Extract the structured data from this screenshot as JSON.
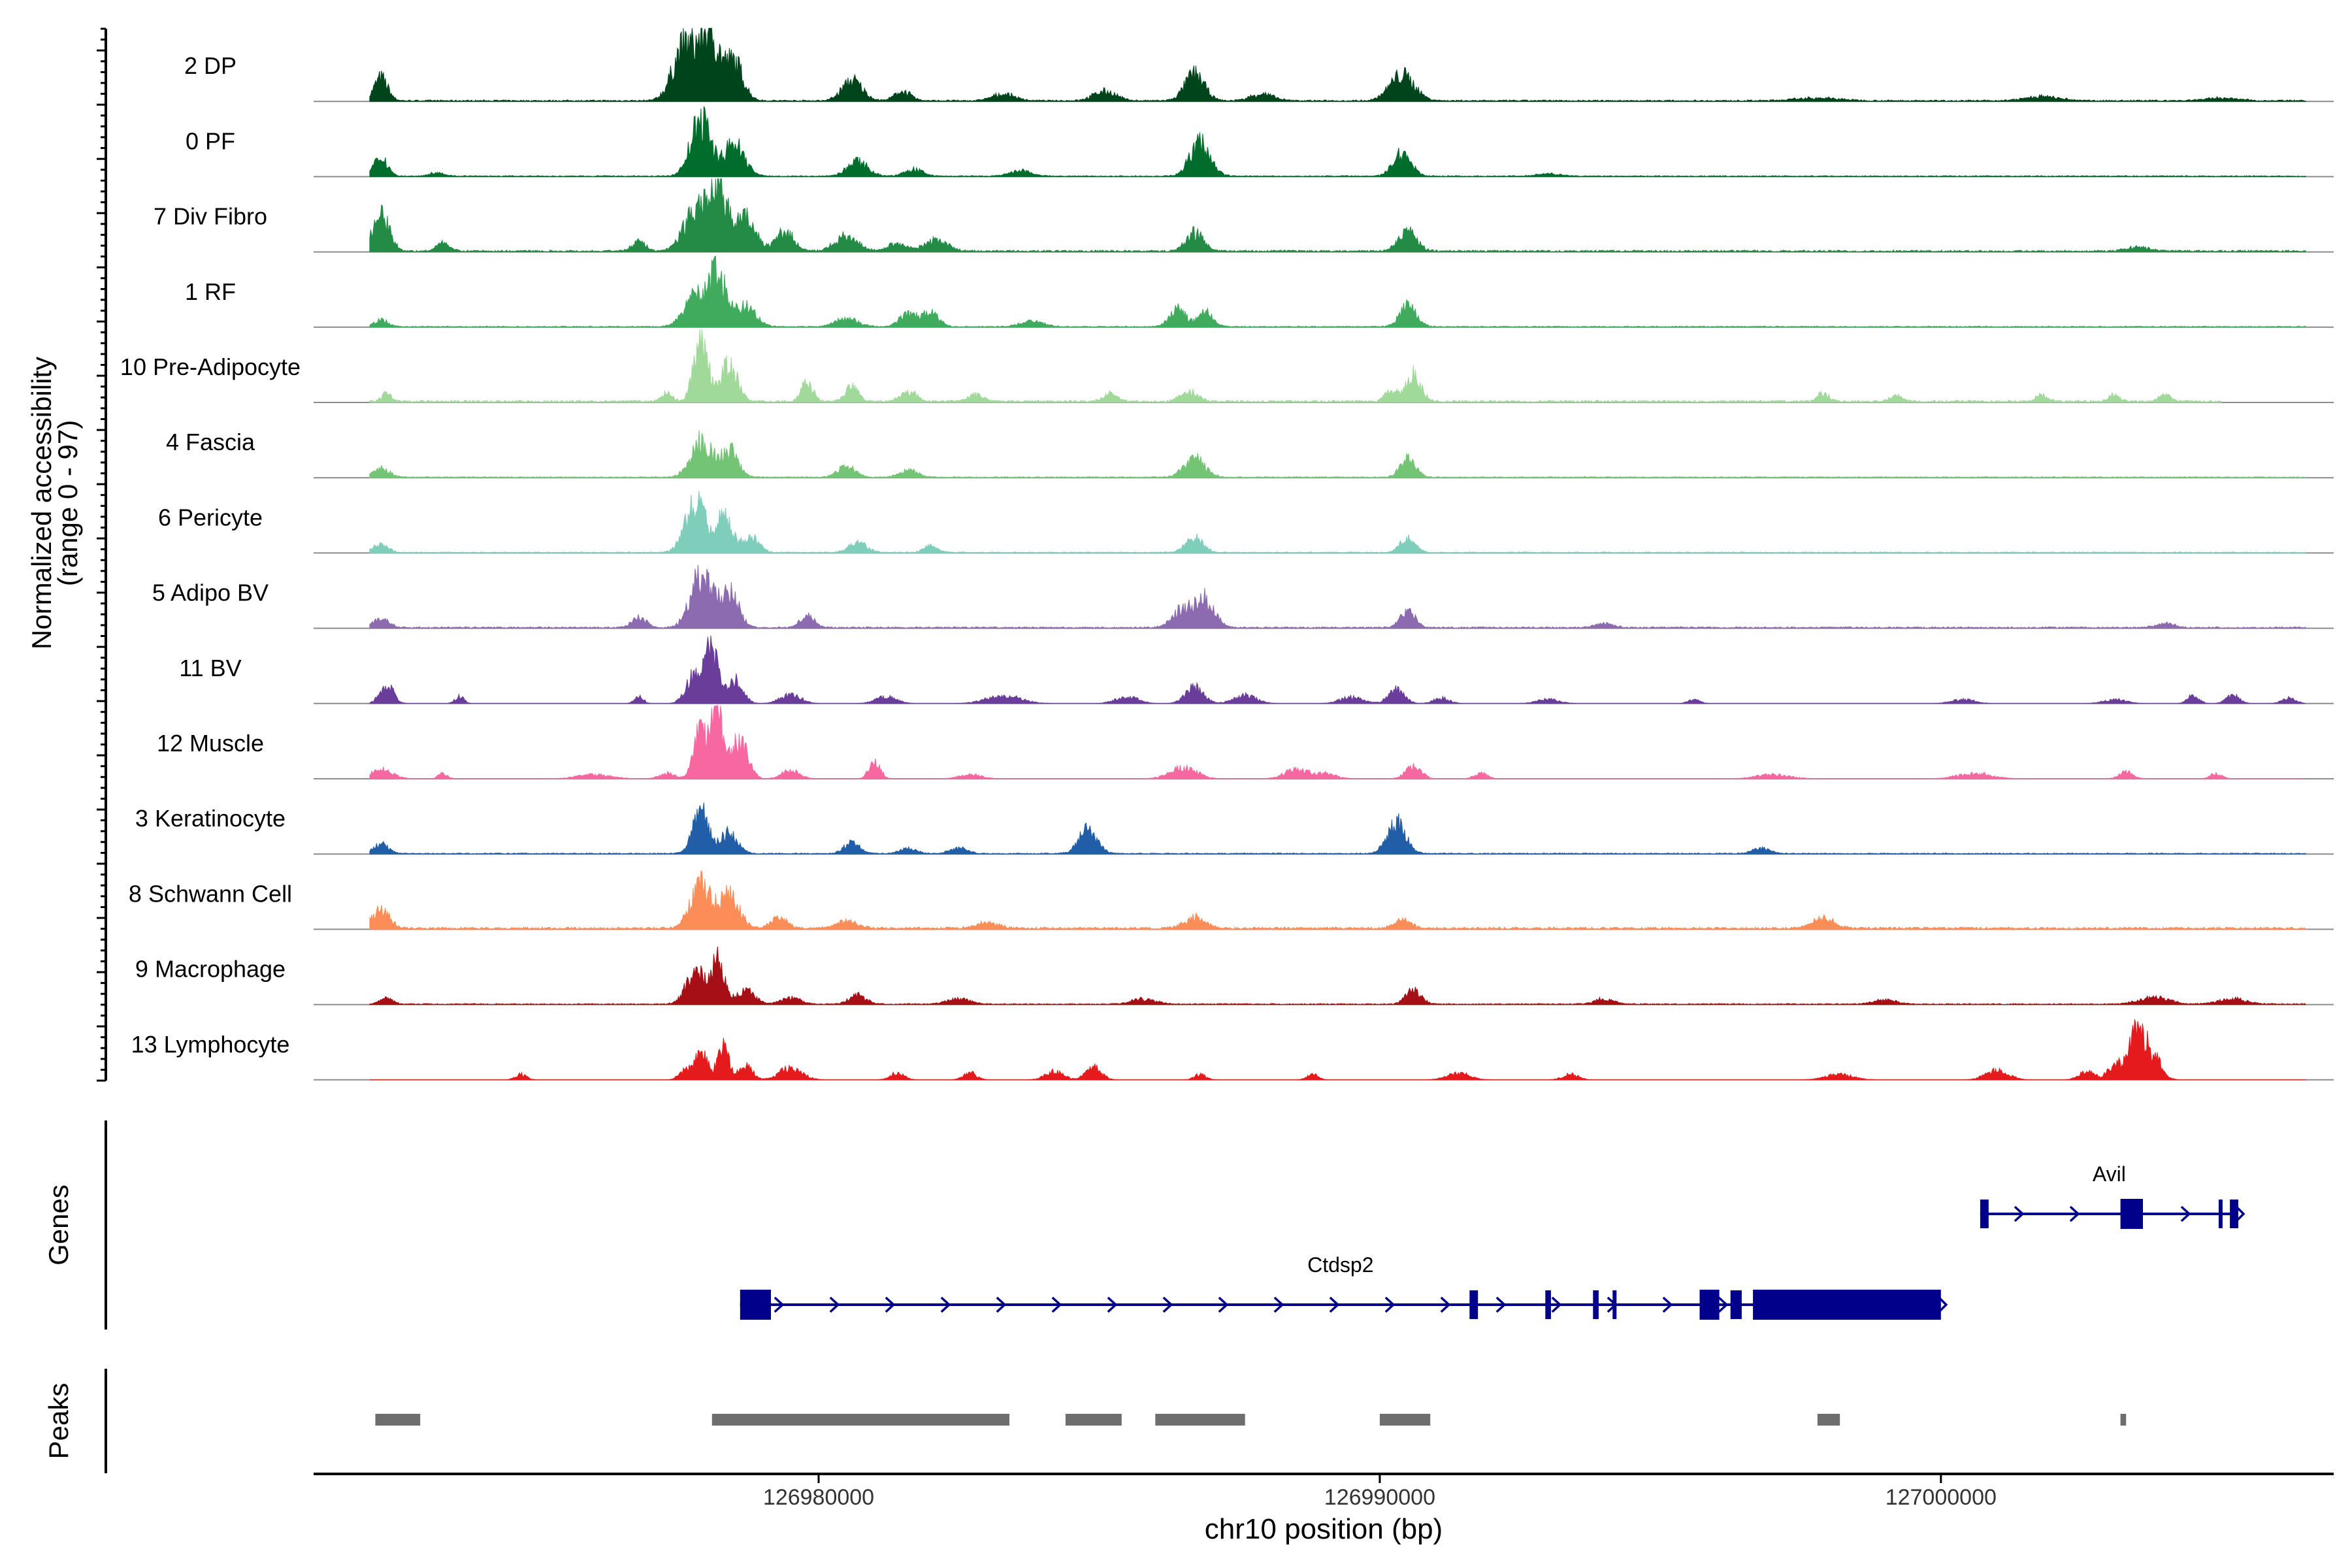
{
  "chart_data": {
    "type": "area",
    "chromosome": "chr10",
    "x_range": [
      126971000,
      127007000
    ],
    "xlabel": "chr10 position (bp)",
    "x_ticks": [
      {
        "value": 126980000,
        "label": "126980000"
      },
      {
        "value": 126990000,
        "label": "126990000"
      },
      {
        "value": 127000000,
        "label": "127000000"
      }
    ],
    "ylabel": "Normalized accessibility",
    "ylabel_range": "(range 0 - 97)",
    "y_range": [
      0,
      97
    ],
    "tracks": [
      {
        "name": "2 DP",
        "color": "#00441b",
        "peaks": [
          [
            126972200,
            34,
            120
          ],
          [
            126977600,
            78,
            200
          ],
          [
            126978050,
            100,
            180
          ],
          [
            126978500,
            54,
            160
          ],
          [
            126980600,
            30,
            180
          ],
          [
            126981500,
            14,
            140
          ],
          [
            126983300,
            10,
            200
          ],
          [
            126985100,
            14,
            200
          ],
          [
            126986700,
            40,
            170
          ],
          [
            126987900,
            10,
            200
          ],
          [
            126990400,
            38,
            220
          ],
          [
            126997800,
            4,
            400
          ],
          [
            127001800,
            6,
            300
          ],
          [
            127005000,
            4,
            300
          ]
        ],
        "base": 2,
        "span": [
          126972000,
          127006500
        ]
      },
      {
        "name": "0 PF",
        "color": "#006d2c",
        "peaks": [
          [
            126972200,
            28,
            120
          ],
          [
            126973200,
            6,
            120
          ],
          [
            126977900,
            82,
            180
          ],
          [
            126978500,
            48,
            180
          ],
          [
            126980700,
            22,
            180
          ],
          [
            126981700,
            10,
            160
          ],
          [
            126983600,
            8,
            180
          ],
          [
            126986800,
            50,
            180
          ],
          [
            126990400,
            34,
            160
          ],
          [
            126993000,
            4,
            200
          ]
        ],
        "base": 1.5,
        "span": [
          126972000,
          127006500
        ]
      },
      {
        "name": "7 Div Fibro",
        "color": "#238b45",
        "peaks": [
          [
            126972200,
            52,
            150
          ],
          [
            126973300,
            12,
            120
          ],
          [
            126976800,
            14,
            120
          ],
          [
            126977800,
            60,
            200
          ],
          [
            126978200,
            100,
            160
          ],
          [
            126978700,
            48,
            180
          ],
          [
            126979400,
            28,
            160
          ],
          [
            126980500,
            22,
            200
          ],
          [
            126981400,
            12,
            160
          ],
          [
            126982100,
            16,
            200
          ],
          [
            126986700,
            28,
            150
          ],
          [
            126990500,
            30,
            160
          ],
          [
            127003500,
            6,
            200
          ]
        ],
        "base": 2.5,
        "span": [
          126972000,
          127006500
        ]
      },
      {
        "name": "1 RF",
        "color": "#41ab5d",
        "peaks": [
          [
            126972200,
            10,
            120
          ],
          [
            126977800,
            46,
            200
          ],
          [
            126978200,
            74,
            150
          ],
          [
            126978700,
            30,
            180
          ],
          [
            126980500,
            12,
            200
          ],
          [
            126981600,
            18,
            160
          ],
          [
            126982000,
            20,
            140
          ],
          [
            126983800,
            8,
            200
          ],
          [
            126986400,
            26,
            140
          ],
          [
            126986900,
            22,
            130
          ],
          [
            126990500,
            30,
            150
          ]
        ],
        "base": 1.5,
        "span": [
          126972000,
          127006500
        ]
      },
      {
        "name": "10 Pre-Adipocyte",
        "color": "#a1d99b",
        "peaks": [
          [
            126972300,
            12,
            80
          ],
          [
            126977300,
            12,
            100
          ],
          [
            126977900,
            96,
            120
          ],
          [
            126978400,
            56,
            150
          ],
          [
            126979800,
            30,
            100
          ],
          [
            126980600,
            24,
            120
          ],
          [
            126981600,
            14,
            140
          ],
          [
            126982800,
            10,
            140
          ],
          [
            126985200,
            12,
            120
          ],
          [
            126986600,
            14,
            160
          ],
          [
            126990200,
            18,
            100
          ],
          [
            126990600,
            40,
            130
          ],
          [
            126997900,
            12,
            100
          ],
          [
            126999200,
            10,
            100
          ],
          [
            127001800,
            10,
            100
          ],
          [
            127003100,
            10,
            100
          ],
          [
            127004000,
            10,
            100
          ]
        ],
        "base": 3,
        "span": [
          126972000,
          127005000
        ]
      },
      {
        "name": "4 Fascia",
        "color": "#74c476",
        "peaks": [
          [
            126972200,
            14,
            140
          ],
          [
            126977900,
            56,
            180
          ],
          [
            126978400,
            40,
            160
          ],
          [
            126980500,
            16,
            160
          ],
          [
            126981600,
            10,
            160
          ],
          [
            126986700,
            28,
            180
          ],
          [
            126990500,
            26,
            140
          ]
        ],
        "base": 1.5,
        "span": [
          126972000,
          127006500
        ]
      },
      {
        "name": "6 Pericyte",
        "color": "#7fcdbb",
        "peaks": [
          [
            126972200,
            12,
            130
          ],
          [
            126977800,
            72,
            180
          ],
          [
            126978300,
            50,
            160
          ],
          [
            126978800,
            22,
            140
          ],
          [
            126980700,
            14,
            160
          ],
          [
            126982000,
            10,
            120
          ],
          [
            126986700,
            22,
            150
          ],
          [
            126990500,
            22,
            130
          ]
        ],
        "base": 1.5,
        "span": [
          126972000,
          127006500
        ]
      },
      {
        "name": "5 Adipo BV",
        "color": "#8c6bb1",
        "peaks": [
          [
            126972200,
            14,
            140
          ],
          [
            126976800,
            16,
            120
          ],
          [
            126977900,
            82,
            180
          ],
          [
            126978400,
            52,
            170
          ],
          [
            126979800,
            18,
            120
          ],
          [
            126986500,
            28,
            180
          ],
          [
            126986900,
            44,
            160
          ],
          [
            126990500,
            24,
            130
          ],
          [
            126994000,
            6,
            160
          ],
          [
            127004000,
            6,
            160
          ]
        ],
        "base": 2,
        "span": [
          126972000,
          127006500
        ]
      },
      {
        "name": "11 BV",
        "color": "#6a3d9a",
        "peaks": [
          [
            126972300,
            28,
            120
          ],
          [
            126973600,
            10,
            80
          ],
          [
            126976800,
            10,
            80
          ],
          [
            126977800,
            44,
            150
          ],
          [
            126978100,
            76,
            110
          ],
          [
            126978500,
            36,
            140
          ],
          [
            126979500,
            14,
            180
          ],
          [
            126981200,
            10,
            180
          ],
          [
            126983300,
            12,
            300
          ],
          [
            126985500,
            10,
            200
          ],
          [
            126986700,
            24,
            160
          ],
          [
            126987600,
            12,
            200
          ],
          [
            126989500,
            10,
            200
          ],
          [
            126990300,
            20,
            140
          ],
          [
            126991100,
            8,
            140
          ],
          [
            126993000,
            6,
            200
          ],
          [
            126995600,
            6,
            100
          ],
          [
            127000400,
            6,
            200
          ],
          [
            127003100,
            6,
            200
          ],
          [
            127004500,
            12,
            100
          ],
          [
            127005200,
            12,
            120
          ],
          [
            127006200,
            8,
            120
          ]
        ],
        "base": 0,
        "span": [
          126972000,
          127006500
        ]
      },
      {
        "name": "12 Muscle",
        "color": "#f768a1",
        "peaks": [
          [
            126972200,
            14,
            200
          ],
          [
            126973300,
            8,
            80
          ],
          [
            126976000,
            6,
            300
          ],
          [
            126977300,
            8,
            140
          ],
          [
            126977900,
            72,
            120
          ],
          [
            126978200,
            96,
            110
          ],
          [
            126978600,
            58,
            140
          ],
          [
            126979500,
            12,
            160
          ],
          [
            126981000,
            24,
            100
          ],
          [
            126982700,
            6,
            200
          ],
          [
            126986500,
            16,
            240
          ],
          [
            126988500,
            14,
            200
          ],
          [
            126989000,
            8,
            200
          ],
          [
            126990600,
            18,
            140
          ],
          [
            126991800,
            8,
            120
          ],
          [
            126997000,
            6,
            300
          ],
          [
            127000600,
            8,
            300
          ],
          [
            127003300,
            10,
            120
          ],
          [
            127004900,
            8,
            100
          ]
        ],
        "base": 0,
        "span": [
          126972000,
          127006500
        ]
      },
      {
        "name": "3 Keratinocyte",
        "color": "#225ea8",
        "peaks": [
          [
            126972200,
            14,
            130
          ],
          [
            126977900,
            60,
            140
          ],
          [
            126978400,
            30,
            150
          ],
          [
            126980600,
            16,
            140
          ],
          [
            126981600,
            8,
            140
          ],
          [
            126982500,
            8,
            160
          ],
          [
            126984800,
            38,
            160
          ],
          [
            126990300,
            46,
            160
          ],
          [
            126996800,
            8,
            160
          ]
        ],
        "base": 1.5,
        "span": [
          126972000,
          127006500
        ]
      },
      {
        "name": "8 Schwann Cell",
        "color": "#fc8d59",
        "peaks": [
          [
            126972200,
            28,
            150
          ],
          [
            126977900,
            64,
            180
          ],
          [
            126978400,
            48,
            180
          ],
          [
            126979300,
            16,
            140
          ],
          [
            126980500,
            10,
            200
          ],
          [
            126983000,
            8,
            200
          ],
          [
            126986700,
            16,
            180
          ],
          [
            126990400,
            14,
            140
          ],
          [
            126997900,
            16,
            180
          ]
        ],
        "base": 3,
        "span": [
          126972000,
          127006500
        ]
      },
      {
        "name": "9 Macrophage",
        "color": "#a50f15",
        "peaks": [
          [
            126972300,
            8,
            120
          ],
          [
            126977800,
            50,
            160
          ],
          [
            126978200,
            62,
            120
          ],
          [
            126978700,
            20,
            160
          ],
          [
            126979500,
            10,
            160
          ],
          [
            126980700,
            14,
            140
          ],
          [
            126982500,
            8,
            200
          ],
          [
            126985800,
            8,
            200
          ],
          [
            126990600,
            22,
            130
          ],
          [
            126994000,
            8,
            160
          ],
          [
            126999000,
            6,
            200
          ],
          [
            127003800,
            10,
            260
          ],
          [
            127005200,
            8,
            240
          ]
        ],
        "base": 1.5,
        "span": [
          126972000,
          127006500
        ]
      },
      {
        "name": "13 Lymphocyte",
        "color": "#e41a1c",
        "peaks": [
          [
            126974700,
            8,
            100
          ],
          [
            126977600,
            12,
            100
          ],
          [
            126977900,
            40,
            120
          ],
          [
            126978300,
            46,
            100
          ],
          [
            126978700,
            22,
            120
          ],
          [
            126979500,
            18,
            200
          ],
          [
            126981400,
            10,
            120
          ],
          [
            126982700,
            10,
            120
          ],
          [
            126984200,
            12,
            160
          ],
          [
            126984900,
            18,
            140
          ],
          [
            126986800,
            8,
            100
          ],
          [
            126988800,
            8,
            100
          ],
          [
            126991400,
            10,
            200
          ],
          [
            126993400,
            8,
            140
          ],
          [
            126998200,
            8,
            240
          ],
          [
            127001000,
            14,
            200
          ],
          [
            127002600,
            12,
            140
          ],
          [
            127003100,
            24,
            120
          ],
          [
            127003500,
            72,
            150
          ],
          [
            127003800,
            30,
            140
          ]
        ],
        "base": 0,
        "span": [
          126972000,
          127006500
        ]
      }
    ],
    "genes": [
      {
        "name": "Ctdsp2",
        "start": 126978600,
        "end": 127000000,
        "strand": "+",
        "exons": [
          [
            126978600,
            126979150
          ],
          [
            126991600,
            126991750
          ],
          [
            126992950,
            126993050
          ],
          [
            126993800,
            126993900
          ],
          [
            126994150,
            126994200
          ],
          [
            126995700,
            126996050
          ],
          [
            126996250,
            126996450
          ],
          [
            126996650,
            127000000
          ]
        ]
      },
      {
        "name": "Avil",
        "start": 127000700,
        "end": 127005300,
        "strand": "+",
        "exons": [
          [
            127000700,
            127000850
          ],
          [
            127003200,
            127003600
          ],
          [
            127004950,
            127005000
          ],
          [
            127005150,
            127005300
          ]
        ]
      }
    ],
    "gene_track_label": "Genes",
    "peak_regions": [
      [
        126972100,
        126972900
      ],
      [
        126978100,
        126983400
      ],
      [
        126984400,
        126985400
      ],
      [
        126986000,
        126987600
      ],
      [
        126990000,
        126990900
      ],
      [
        126997800,
        126998200
      ],
      [
        127003200,
        127003300
      ]
    ],
    "peak_track_label": "Peaks",
    "colors": {
      "gene": "#00008b",
      "peak": "#6e6e6e",
      "baseline": "#8c8c8c"
    }
  }
}
